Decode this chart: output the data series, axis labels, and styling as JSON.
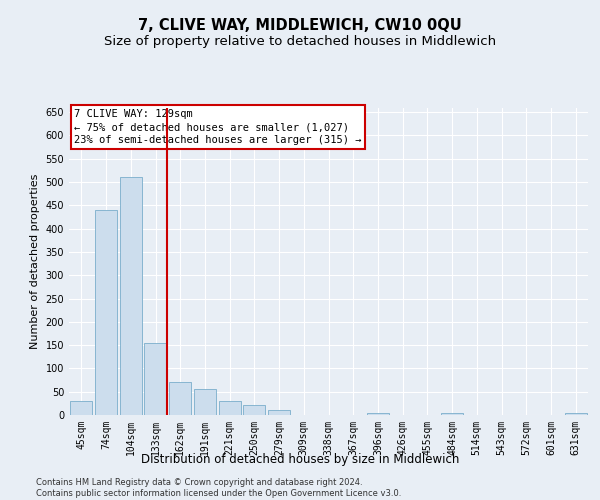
{
  "title": "7, CLIVE WAY, MIDDLEWICH, CW10 0QU",
  "subtitle": "Size of property relative to detached houses in Middlewich",
  "xlabel": "Distribution of detached houses by size in Middlewich",
  "ylabel": "Number of detached properties",
  "categories": [
    "45sqm",
    "74sqm",
    "104sqm",
    "133sqm",
    "162sqm",
    "191sqm",
    "221sqm",
    "250sqm",
    "279sqm",
    "309sqm",
    "338sqm",
    "367sqm",
    "396sqm",
    "426sqm",
    "455sqm",
    "484sqm",
    "514sqm",
    "543sqm",
    "572sqm",
    "601sqm",
    "631sqm"
  ],
  "values": [
    30,
    440,
    510,
    155,
    70,
    55,
    30,
    22,
    10,
    0,
    0,
    0,
    5,
    0,
    0,
    5,
    0,
    0,
    0,
    0,
    5
  ],
  "bar_color": "#ccdded",
  "bar_edge_color": "#7aaecb",
  "background_color": "#e8eef5",
  "grid_color": "#ffffff",
  "annotation_line1": "7 CLIVE WAY: 129sqm",
  "annotation_line2": "← 75% of detached houses are smaller (1,027)",
  "annotation_line3": "23% of semi-detached houses are larger (315) →",
  "annotation_box_color": "#ffffff",
  "annotation_box_edge_color": "#cc0000",
  "redline_color": "#cc0000",
  "redline_bar_index": 3,
  "ylim": [
    0,
    660
  ],
  "yticks": [
    0,
    50,
    100,
    150,
    200,
    250,
    300,
    350,
    400,
    450,
    500,
    550,
    600,
    650
  ],
  "footnote": "Contains HM Land Registry data © Crown copyright and database right 2024.\nContains public sector information licensed under the Open Government Licence v3.0.",
  "title_fontsize": 10.5,
  "subtitle_fontsize": 9.5,
  "xlabel_fontsize": 8.5,
  "ylabel_fontsize": 8,
  "tick_fontsize": 7,
  "annotation_fontsize": 7.5,
  "footnote_fontsize": 6
}
